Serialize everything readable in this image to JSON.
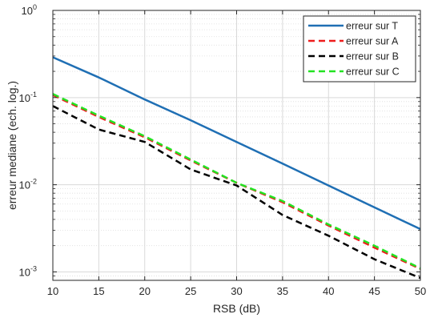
{
  "chart_data": {
    "type": "line",
    "xlabel": "RSB (dB)",
    "ylabel": "erreur mediane (ech. log.)",
    "xlim": [
      10,
      50
    ],
    "ylim": [
      0.0008,
      1
    ],
    "yscale": "log",
    "grid": true,
    "minor_grid": true,
    "legend_position": "top-right",
    "x_ticks": [
      10,
      15,
      20,
      25,
      30,
      35,
      40,
      45,
      50
    ],
    "y_ticks": [
      {
        "value": 0.001,
        "base": "10",
        "exp": "-3"
      },
      {
        "value": 0.01,
        "base": "10",
        "exp": "-2"
      },
      {
        "value": 0.1,
        "base": "10",
        "exp": "-1"
      },
      {
        "value": 1,
        "base": "10",
        "exp": "0"
      }
    ],
    "x": [
      10,
      15,
      20,
      25,
      30,
      35,
      40,
      45,
      50
    ],
    "series": [
      {
        "name": "erreur sur T",
        "color": "#1f6fb4",
        "dash": "solid",
        "values": [
          0.29,
          0.17,
          0.095,
          0.055,
          0.031,
          0.0175,
          0.0098,
          0.0055,
          0.0031
        ]
      },
      {
        "name": "erreur sur A",
        "color": "#ee1c1c",
        "dash": "dashed",
        "values": [
          0.107,
          0.06,
          0.035,
          0.019,
          0.0105,
          0.0063,
          0.0034,
          0.0019,
          0.00108
        ]
      },
      {
        "name": "erreur sur B",
        "color": "#000000",
        "dash": "dashed",
        "values": [
          0.08,
          0.043,
          0.031,
          0.015,
          0.0098,
          0.0045,
          0.0026,
          0.0014,
          0.00085
        ]
      },
      {
        "name": "erreur sur C",
        "color": "#22e322",
        "dash": "dashed",
        "values": [
          0.11,
          0.062,
          0.036,
          0.0195,
          0.0105,
          0.0065,
          0.0035,
          0.002,
          0.0011
        ]
      }
    ]
  }
}
